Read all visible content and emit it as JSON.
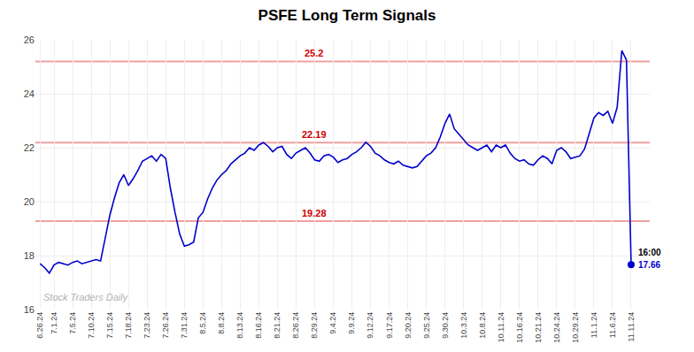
{
  "chart_data": {
    "type": "line",
    "title": "PSFE Long Term Signals",
    "categories": [
      "6.26.24",
      null,
      null,
      "7.1.24",
      null,
      null,
      null,
      "7.5.24",
      null,
      null,
      null,
      "7.10.24",
      null,
      null,
      null,
      "7.15.24",
      null,
      null,
      null,
      "7.18.24",
      null,
      null,
      null,
      "7.23.24",
      null,
      null,
      null,
      "7.26.24",
      null,
      null,
      null,
      "7.31.24",
      null,
      null,
      null,
      "8.5.24",
      null,
      null,
      null,
      "8.8.24",
      null,
      null,
      null,
      "8.13.24",
      null,
      null,
      null,
      "8.16.24",
      null,
      null,
      null,
      "8.21.24",
      null,
      null,
      null,
      "8.26.24",
      null,
      null,
      null,
      "8.29.24",
      null,
      null,
      null,
      "9.4.24",
      null,
      null,
      null,
      "9.9.24",
      null,
      null,
      null,
      "9.12.24",
      null,
      null,
      null,
      "9.17.24",
      null,
      null,
      null,
      "9.20.24",
      null,
      null,
      null,
      "9.25.24",
      null,
      null,
      null,
      "9.30.24",
      null,
      null,
      null,
      "10.3.24",
      null,
      null,
      null,
      "10.8.24",
      null,
      null,
      null,
      "10.11.24",
      null,
      null,
      null,
      "10.16.24",
      null,
      null,
      null,
      "10.21.24",
      null,
      null,
      null,
      "10.24.24",
      null,
      null,
      null,
      "10.29.24",
      null,
      null,
      null,
      "11.1.24",
      null,
      null,
      null,
      "11.6.24",
      null,
      null,
      null,
      "11.11.24"
    ],
    "values": [
      17.7,
      17.55,
      17.35,
      17.65,
      17.75,
      17.7,
      17.65,
      17.75,
      17.8,
      17.7,
      17.75,
      17.8,
      17.85,
      17.8,
      18.6,
      19.5,
      20.15,
      20.7,
      21.0,
      20.6,
      20.85,
      21.15,
      21.5,
      21.6,
      21.7,
      21.5,
      21.75,
      21.6,
      20.5,
      19.6,
      18.8,
      18.35,
      18.4,
      18.5,
      19.4,
      19.6,
      20.1,
      20.5,
      20.8,
      21.0,
      21.15,
      21.4,
      21.55,
      21.7,
      21.8,
      22.0,
      21.9,
      22.1,
      22.19,
      22.05,
      21.85,
      22.0,
      22.05,
      21.75,
      21.6,
      21.8,
      21.9,
      22.0,
      21.8,
      21.55,
      21.5,
      21.7,
      21.75,
      21.65,
      21.45,
      21.55,
      21.6,
      21.75,
      21.85,
      22.0,
      22.2,
      22.05,
      21.8,
      21.7,
      21.55,
      21.45,
      21.4,
      21.5,
      21.35,
      21.3,
      21.25,
      21.3,
      21.5,
      21.7,
      21.8,
      22.0,
      22.4,
      22.9,
      23.25,
      22.7,
      22.5,
      22.3,
      22.1,
      22.0,
      21.9,
      22.0,
      22.1,
      21.85,
      22.1,
      22.0,
      22.1,
      21.8,
      21.6,
      21.5,
      21.55,
      21.4,
      21.35,
      21.55,
      21.7,
      21.6,
      21.4,
      21.9,
      22.0,
      21.85,
      21.6,
      21.65,
      21.7,
      21.95,
      22.5,
      23.1,
      23.3,
      23.2,
      23.35,
      22.9,
      23.5,
      25.6,
      25.25,
      17.66
    ],
    "color": "#0000cc",
    "hlines": {
      "color": "#f0a0a0",
      "label_color": "#cc0000",
      "lines": [
        {
          "value": 25.2,
          "label": "25.2"
        },
        {
          "value": 22.19,
          "label": "22.19"
        },
        {
          "value": 19.28,
          "label": "19.28"
        }
      ]
    },
    "last_point": {
      "time_label": "16:00",
      "price_label": "17.66",
      "value": 17.66,
      "color": "#0000cc"
    },
    "watermark": "Stock Traders Daily",
    "ylim": [
      16,
      26
    ],
    "yticks": [
      16,
      18,
      20,
      22,
      24,
      26
    ],
    "grid": true
  }
}
